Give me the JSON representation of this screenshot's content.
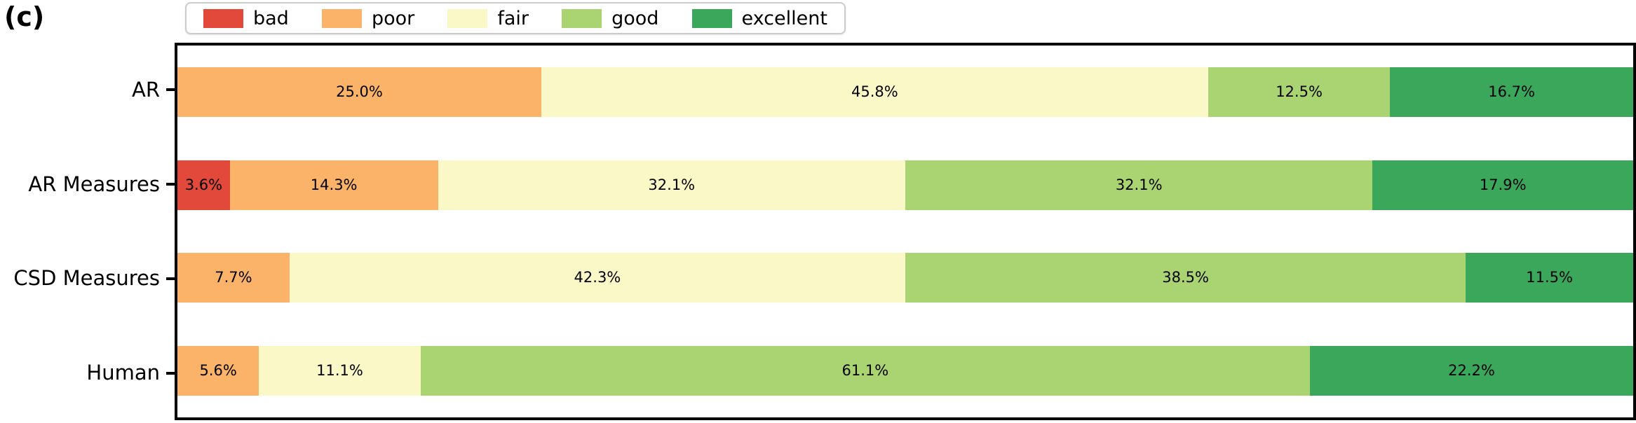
{
  "panel_label": "(c)",
  "chart_data": {
    "type": "bar",
    "stacked": true,
    "orientation": "horizontal",
    "title": "",
    "xlabel": "",
    "ylabel": "",
    "xlim": [
      0,
      100
    ],
    "grid": false,
    "legend_position": "top",
    "legend": [
      "bad",
      "poor",
      "fair",
      "good",
      "excellent"
    ],
    "colors": {
      "bad": "#e2493b",
      "poor": "#fbb269",
      "fair": "#faf8c6",
      "good": "#aad372",
      "excellent": "#3aa75a"
    },
    "categories": [
      "AR",
      "AR Measures",
      "CSD Measures",
      "Human"
    ],
    "series": [
      {
        "name": "bad",
        "values": [
          0,
          3.6,
          0,
          0
        ]
      },
      {
        "name": "poor",
        "values": [
          25.0,
          14.3,
          7.7,
          5.6
        ]
      },
      {
        "name": "fair",
        "values": [
          45.8,
          32.1,
          42.3,
          11.1
        ]
      },
      {
        "name": "good",
        "values": [
          12.5,
          32.1,
          38.5,
          61.1
        ]
      },
      {
        "name": "excellent",
        "values": [
          16.7,
          17.9,
          11.5,
          22.2
        ]
      }
    ],
    "bar_label_suffix": "%",
    "bar_labels_visible": true
  }
}
